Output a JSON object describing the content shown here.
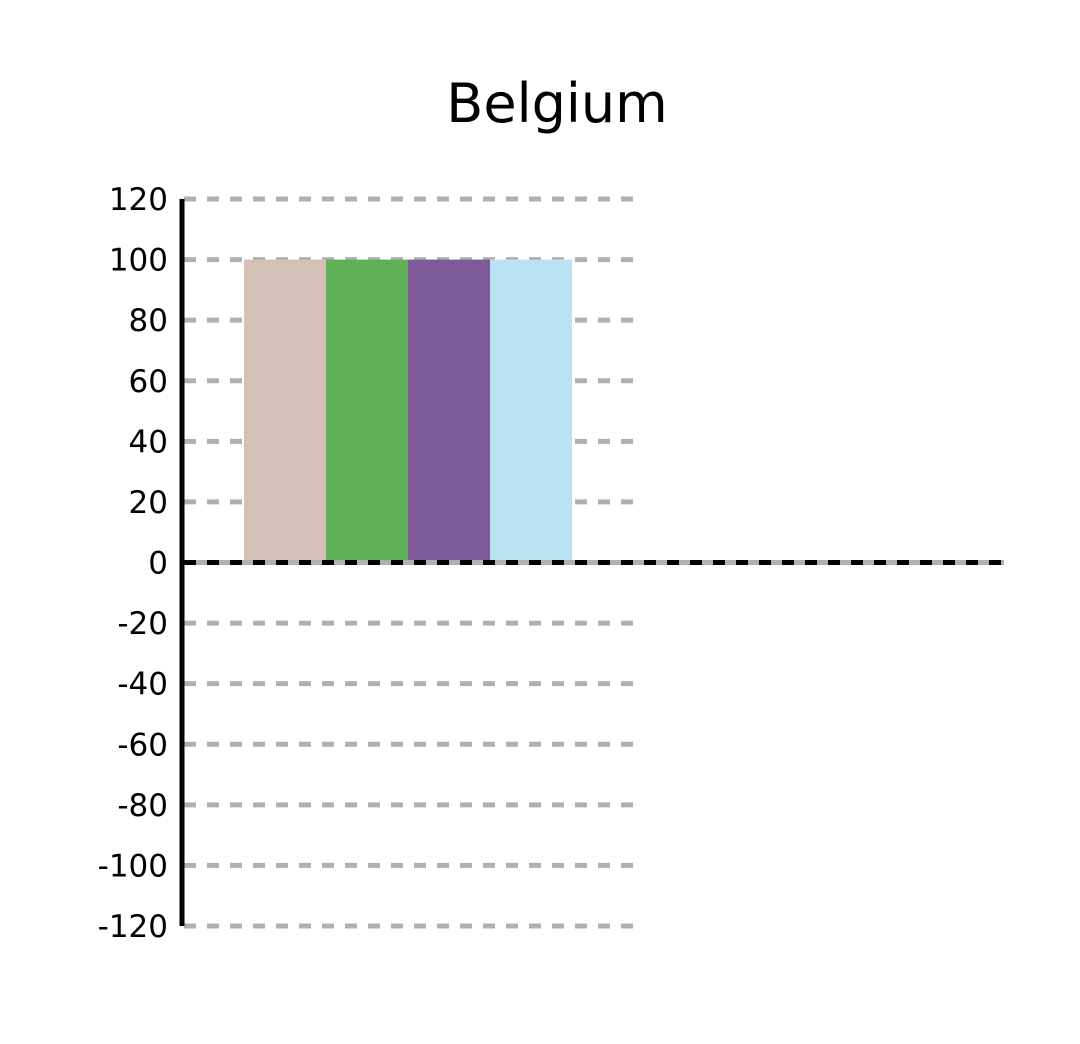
{
  "chart_data": {
    "type": "bar",
    "title": "Belgium",
    "xlabel": "",
    "ylabel": "",
    "ylim": [
      -120,
      120
    ],
    "yticks": [
      120,
      100,
      80,
      60,
      40,
      20,
      0,
      -20,
      -40,
      -60,
      -80,
      -100,
      -120
    ],
    "grid": true,
    "categories": [
      ""
    ],
    "series": [
      {
        "values": [
          100
        ],
        "color": "#d4c0b6"
      },
      {
        "values": [
          100
        ],
        "color": "#5eb157"
      },
      {
        "values": [
          100
        ],
        "color": "#7e5a9b"
      },
      {
        "values": [
          100
        ],
        "color": "#bbe2f2"
      }
    ]
  }
}
